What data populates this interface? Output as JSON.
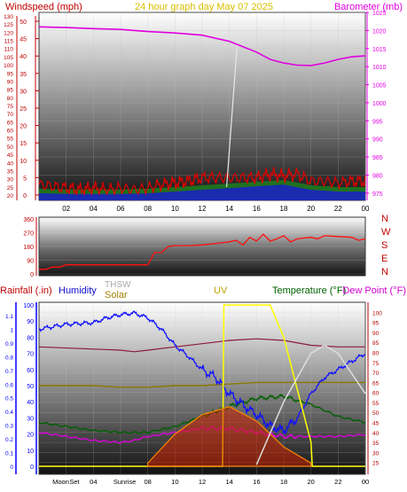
{
  "header": {
    "left_title": "Windspeed (mph)",
    "center_title": "24 hour graph day   May 07 2025",
    "right_title": "Barometer (mb)"
  },
  "colors": {
    "wind_axis": "#c00000",
    "baro_axis": "#e000e0",
    "title_yellow": "#d8c000",
    "rain_axis": "#0000ff",
    "humidity": "#1010cc",
    "solar": "#a08000",
    "uv": "#c0a000",
    "temperature": "#006000",
    "dewpoint": "#d000d0",
    "thsw": "#a8a8a8",
    "temp_axis": "#b00000"
  },
  "chart_data": [
    {
      "id": "wind-baro",
      "type": "line",
      "title": "24 hour graph day   May 07 2025",
      "x_ticks": [
        "02",
        "04",
        "06",
        "08",
        "10",
        "12",
        "14",
        "16",
        "18",
        "20",
        "22",
        "00"
      ],
      "left_axis": {
        "label": "Windspeed (mph)",
        "range": [
          0,
          50
        ],
        "ticks": [
          "20",
          "25",
          "30",
          "35",
          "40",
          "45",
          "50",
          "55",
          "60",
          "65",
          "70",
          "75",
          "80",
          "85",
          "90",
          "95",
          "100",
          "105",
          "110",
          "115",
          "120",
          "125",
          "130"
        ]
      },
      "left_axis_inner": {
        "range": [
          0,
          50
        ],
        "ticks": [
          "0",
          "5",
          "10",
          "15",
          "20",
          "25",
          "30",
          "35",
          "40",
          "45",
          "50"
        ]
      },
      "right_axis": {
        "label": "Barometer (mb)",
        "range": [
          973,
          1025
        ],
        "ticks": [
          "975",
          "980",
          "985",
          "990",
          "995",
          "1000",
          "1005",
          "1010",
          "1015",
          "1020",
          "1025"
        ]
      },
      "series": [
        {
          "name": "Barometer (mb)",
          "x": [
            0,
            2,
            4,
            6,
            8,
            10,
            12,
            14,
            16,
            17,
            18,
            19,
            20,
            21,
            22,
            23,
            24
          ],
          "y": [
            1021,
            1020.8,
            1020.5,
            1020.3,
            1019.7,
            1019.3,
            1018.7,
            1017,
            1014,
            1012,
            1011,
            1010.4,
            1010.3,
            1011,
            1012,
            1012.7,
            1013
          ]
        },
        {
          "name": "Wind gust",
          "x": [
            0,
            1,
            2,
            3,
            4,
            5,
            6,
            7,
            8,
            9,
            10,
            11,
            12,
            13,
            14,
            15,
            16,
            17,
            18,
            19,
            20,
            21,
            22,
            23,
            24
          ],
          "y": [
            3,
            2.5,
            2,
            1.5,
            2,
            1.5,
            2,
            1.5,
            2,
            3,
            3.5,
            4,
            5,
            5,
            5,
            5,
            5,
            6,
            5.5,
            6,
            4,
            4,
            3.5,
            4,
            4
          ]
        },
        {
          "name": "Wind speed",
          "x": [
            0,
            2,
            4,
            6,
            8,
            10,
            12,
            14,
            16,
            18,
            20,
            22,
            24
          ],
          "y": [
            0.5,
            0.3,
            0.3,
            0.3,
            0.5,
            1,
            1.5,
            2,
            2.5,
            3,
            1.5,
            1,
            1
          ]
        }
      ]
    },
    {
      "id": "wind-direction",
      "type": "line",
      "left_axis": {
        "range": [
          0,
          360
        ],
        "ticks": [
          "0",
          "90",
          "180",
          "270",
          "360"
        ]
      },
      "right_labels": [
        "N",
        "W",
        "S",
        "E",
        "N"
      ],
      "series": [
        {
          "name": "Wind direction",
          "x": [
            0,
            0.5,
            1,
            1.5,
            2,
            3,
            4,
            5,
            6,
            7,
            8,
            8.5,
            9,
            9.5,
            10,
            11,
            12,
            13,
            14,
            14.5,
            15,
            15.5,
            16,
            16.5,
            17,
            17.5,
            18,
            18.5,
            19,
            19.5,
            20,
            20.5,
            21,
            22,
            23,
            23.5,
            24
          ],
          "y": [
            30,
            30,
            45,
            45,
            60,
            60,
            60,
            60,
            60,
            60,
            60,
            140,
            140,
            180,
            185,
            185,
            190,
            200,
            210,
            220,
            190,
            240,
            215,
            260,
            215,
            230,
            250,
            210,
            230,
            235,
            240,
            230,
            250,
            245,
            240,
            220,
            230
          ]
        }
      ]
    },
    {
      "id": "weather-multi",
      "type": "line",
      "legend": [
        "Rainfall (.in)",
        "Humidity",
        "THSW",
        "Solar",
        "UV",
        "Temperature (°F)",
        "Dew Point (°F)"
      ],
      "x_ticks": [
        "Moon",
        "Set",
        "04",
        "Sunrise",
        "08",
        "10",
        "12",
        "14",
        "16",
        "18",
        "20",
        "22",
        "00"
      ],
      "rain_axis": {
        "label": "Rainfall (.in)",
        "range": [
          0,
          1.2
        ],
        "ticks": [
          "0",
          "0.1",
          "0.2",
          "0.3",
          "0.4",
          "0.5",
          "0.6",
          "0.7",
          "0.8",
          "0.9",
          "1",
          "1.1"
        ]
      },
      "humidity_axis": {
        "label": "Humidity",
        "range": [
          0,
          100
        ],
        "ticks": [
          "0",
          "10",
          "20",
          "30",
          "40",
          "50",
          "60",
          "70",
          "80",
          "90",
          "100"
        ]
      },
      "temp_axis": {
        "label": "Temperature (°F)",
        "range": [
          20,
          105
        ],
        "ticks": [
          "25",
          "30",
          "35",
          "40",
          "45",
          "50",
          "55",
          "60",
          "65",
          "70",
          "75",
          "80",
          "85",
          "90",
          "95",
          "100"
        ]
      },
      "series": [
        {
          "name": "Humidity",
          "x": [
            0,
            2,
            4,
            5,
            6,
            7,
            8,
            9,
            10,
            11,
            12,
            13,
            14,
            15,
            16,
            17,
            18,
            19,
            20,
            21,
            22,
            23,
            24
          ],
          "y": [
            85,
            88,
            89,
            92,
            94,
            95,
            92,
            85,
            75,
            68,
            60,
            55,
            45,
            38,
            32,
            25,
            22,
            30,
            45,
            55,
            60,
            65,
            70
          ]
        },
        {
          "name": "Temperature (°F)",
          "x": [
            0,
            2,
            4,
            6,
            8,
            10,
            12,
            14,
            16,
            18,
            20,
            22,
            24
          ],
          "y": [
            45,
            43,
            41,
            40,
            40,
            43,
            48,
            53,
            57,
            58,
            54,
            48,
            45
          ]
        },
        {
          "name": "Dew Point (°F)",
          "x": [
            0,
            2,
            4,
            6,
            7,
            8,
            10,
            12,
            14,
            16,
            18,
            20,
            22,
            24
          ],
          "y": [
            40,
            38,
            36,
            35,
            36,
            38,
            40,
            42,
            42,
            40,
            38,
            38,
            38,
            39
          ]
        },
        {
          "name": "THSW",
          "x": [
            0,
            6,
            7,
            8,
            10,
            12,
            14,
            16,
            18,
            20,
            22,
            24
          ],
          "y": [
            74,
            72,
            71,
            72,
            74,
            76,
            78,
            79,
            78,
            75,
            74,
            74
          ]
        },
        {
          "name": "Solar",
          "x": [
            0,
            4,
            6,
            8,
            10,
            12,
            14,
            16,
            18,
            20,
            22,
            24
          ],
          "y": [
            50,
            50,
            49,
            49,
            50,
            50,
            51,
            52,
            52,
            52,
            52,
            52
          ]
        },
        {
          "name": "UV",
          "x": [
            0,
            7,
            9,
            11,
            13.5,
            13.6,
            17,
            18,
            20,
            20.1,
            24
          ],
          "y": [
            0,
            0,
            0,
            0,
            0,
            100,
            100,
            80,
            15,
            0,
            0
          ]
        },
        {
          "name": "Rainfall (.in)",
          "x": [
            0,
            24
          ],
          "y": [
            0,
            0
          ]
        }
      ],
      "extra_series": [
        {
          "name": "Solar radiation",
          "x": [
            8,
            10,
            12,
            14,
            16,
            18,
            20
          ],
          "y": [
            2,
            20,
            32,
            37,
            28,
            12,
            2
          ]
        },
        {
          "name": "Moon",
          "x": [
            16,
            18,
            20,
            21,
            22,
            24
          ],
          "y": [
            1,
            40,
            70,
            75,
            70,
            45
          ]
        }
      ]
    }
  ]
}
